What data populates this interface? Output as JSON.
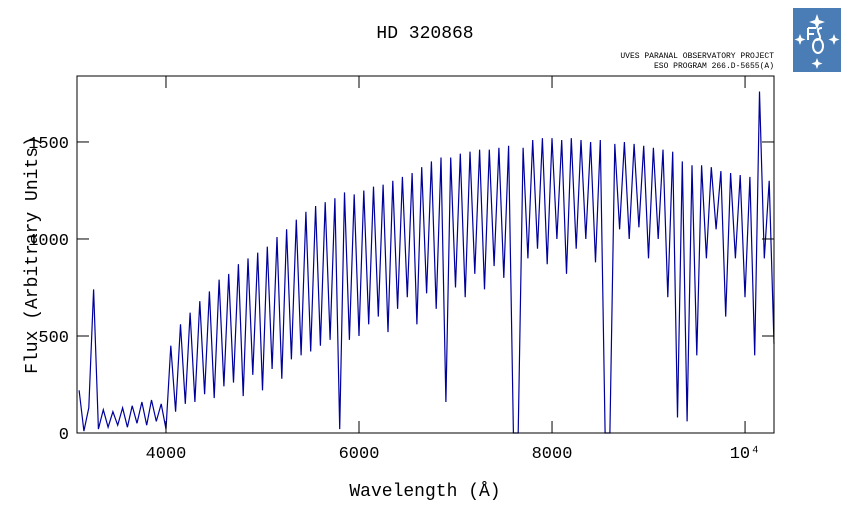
{
  "chart_data": {
    "type": "line",
    "title": "HD 320868",
    "subtitle": [
      "UVES PARANAL OBSERVATORY PROJECT",
      "ESO PROGRAM 266.D-5655(A)"
    ],
    "x_label": "Wavelength (Å)",
    "y_label": "Flux (Arbitrary Units)",
    "xlim": [
      3078,
      10300
    ],
    "ylim": [
      0,
      1840
    ],
    "xticks": [
      4000,
      6000,
      8000,
      {
        "value": 10000,
        "label": "10⁴"
      }
    ],
    "yticks": [
      0,
      500,
      1000,
      1500
    ],
    "color": "#00009c",
    "x": [
      3100,
      3150,
      3200,
      3250,
      3300,
      3350,
      3400,
      3450,
      3500,
      3550,
      3600,
      3650,
      3700,
      3750,
      3800,
      3850,
      3900,
      3950,
      4000,
      4050,
      4100,
      4150,
      4200,
      4250,
      4300,
      4350,
      4400,
      4450,
      4500,
      4550,
      4600,
      4650,
      4700,
      4750,
      4800,
      4850,
      4900,
      4950,
      5000,
      5050,
      5100,
      5150,
      5200,
      5250,
      5300,
      5350,
      5400,
      5450,
      5500,
      5550,
      5600,
      5650,
      5700,
      5750,
      5800,
      5850,
      5900,
      5950,
      6000,
      6050,
      6100,
      6150,
      6200,
      6250,
      6300,
      6350,
      6400,
      6450,
      6500,
      6550,
      6600,
      6650,
      6700,
      6750,
      6800,
      6850,
      6900,
      6950,
      7000,
      7050,
      7100,
      7150,
      7200,
      7250,
      7300,
      7350,
      7400,
      7450,
      7500,
      7550,
      7600,
      7650,
      7700,
      7750,
      7800,
      7850,
      7900,
      7950,
      8000,
      8050,
      8100,
      8150,
      8200,
      8250,
      8300,
      8350,
      8400,
      8450,
      8500,
      8550,
      8600,
      8650,
      8700,
      8750,
      8800,
      8850,
      8900,
      8950,
      9000,
      9050,
      9100,
      9150,
      9200,
      9250,
      9300,
      9350,
      9400,
      9450,
      9500,
      9550,
      9600,
      9650,
      9700,
      9750,
      9800,
      9850,
      9900,
      9950,
      10000,
      10050,
      10100,
      10150,
      10200,
      10250,
      10300
    ],
    "values": [
      220,
      10,
      130,
      740,
      20,
      120,
      30,
      110,
      40,
      130,
      30,
      140,
      50,
      160,
      40,
      170,
      60,
      150,
      20,
      450,
      110,
      560,
      150,
      620,
      160,
      680,
      200,
      730,
      180,
      790,
      240,
      820,
      260,
      870,
      190,
      900,
      300,
      930,
      220,
      960,
      330,
      1010,
      280,
      1050,
      380,
      1100,
      400,
      1140,
      420,
      1170,
      450,
      1190,
      480,
      1210,
      20,
      1240,
      480,
      1230,
      500,
      1250,
      560,
      1270,
      600,
      1280,
      520,
      1300,
      640,
      1320,
      700,
      1340,
      560,
      1370,
      720,
      1400,
      640,
      1420,
      160,
      1420,
      750,
      1440,
      700,
      1450,
      820,
      1460,
      740,
      1460,
      860,
      1470,
      800,
      1480,
      0,
      0,
      1470,
      900,
      1510,
      950,
      1520,
      870,
      1520,
      1000,
      1510,
      820,
      1520,
      950,
      1510,
      1000,
      1500,
      880,
      1510,
      0,
      0,
      1490,
      1050,
      1500,
      1000,
      1490,
      1060,
      1480,
      900,
      1470,
      1000,
      1460,
      700,
      1450,
      80,
      1400,
      60,
      1380,
      400,
      1380,
      900,
      1370,
      1050,
      1350,
      600,
      1340,
      900,
      1330,
      700,
      1320,
      400,
      1760,
      900,
      1300,
      460
    ]
  }
}
